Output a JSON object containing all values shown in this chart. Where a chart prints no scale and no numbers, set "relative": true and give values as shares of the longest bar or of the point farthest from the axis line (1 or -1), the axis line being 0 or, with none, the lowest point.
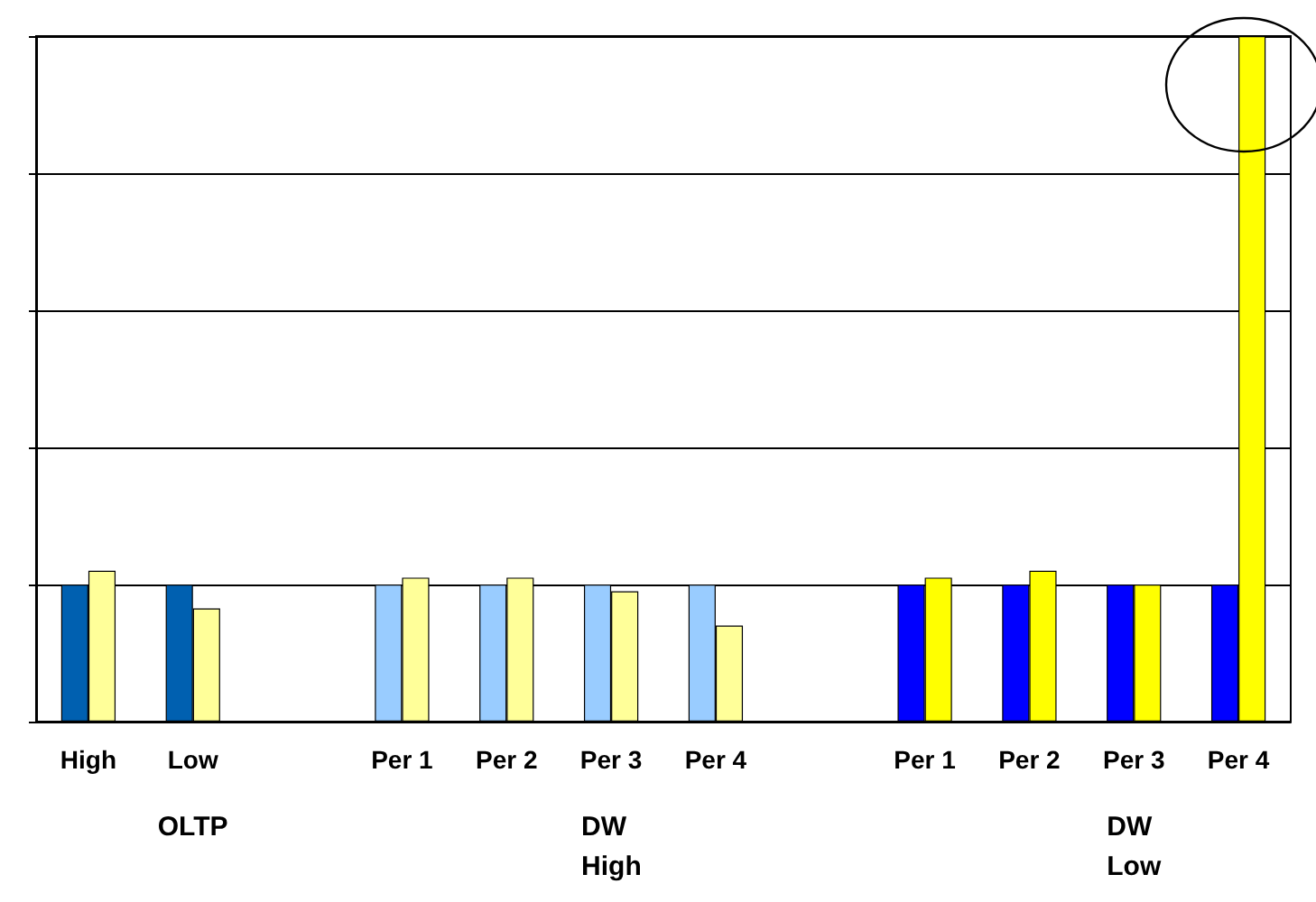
{
  "chart_data": {
    "type": "bar",
    "relative": true,
    "grid": "y",
    "categories": [
      "High",
      "Low",
      null,
      "Per 1",
      "Per 2",
      "Per 3",
      "Per 4",
      null,
      "Per 1",
      "Per 2",
      "Per 3",
      "Per 4"
    ],
    "series": [
      {
        "colors": [
          "#0060b0",
          "#0060b0",
          "#0060b0",
          "#99ccff",
          "#99ccff",
          "#99ccff",
          "#99ccff",
          "#0000cc",
          "#0000ff",
          "#0000ff",
          "#0000ff",
          "#0000ff"
        ],
        "values": [
          0.2,
          0.2,
          0,
          0.2,
          0.2,
          0.2,
          0.2,
          0,
          0.2,
          0.2,
          0.2,
          0.2
        ]
      },
      {
        "colors": [
          "#ffff99",
          "#ffff99",
          "#ffff99",
          "#ffff99",
          "#ffff99",
          "#ffff99",
          "#ffff99",
          "#ffff00",
          "#ffff00",
          "#ffff00",
          "#ffff00",
          "#ffff00"
        ],
        "values": [
          0.22,
          0.165,
          0,
          0.21,
          0.21,
          0.19,
          0.14,
          0,
          0.21,
          0.22,
          0.2,
          1
        ]
      }
    ],
    "annotations": [
      "OLTP",
      "DW\nHigh",
      "DW\nLow"
    ]
  }
}
